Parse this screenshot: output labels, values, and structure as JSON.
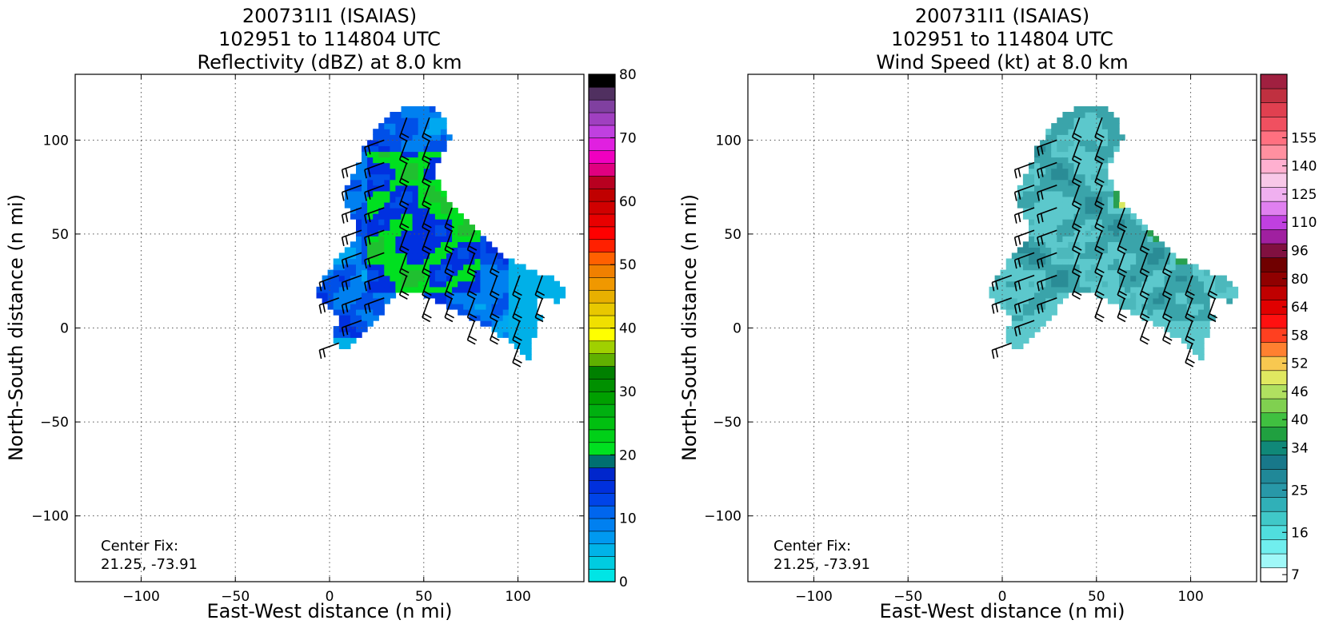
{
  "chart_data": [
    {
      "type": "heatmap",
      "title": [
        "200731I1 (ISAIAS)",
        "102951 to 114804 UTC",
        "Reflectivity (dBZ) at 8.0 km"
      ],
      "xlabel": "East-West distance (n mi)",
      "ylabel": "North-South distance (n mi)",
      "xlim": [
        -135,
        135
      ],
      "ylim": [
        -135,
        135
      ],
      "xticks": [
        -100,
        -50,
        0,
        50,
        100
      ],
      "yticks": [
        -100,
        -50,
        0,
        50,
        100
      ],
      "xtick_labels": [
        "−100",
        "−50",
        "0",
        "50",
        "100"
      ],
      "ytick_labels": [
        "−100",
        "−50",
        "0",
        "50",
        "100"
      ],
      "grid": true,
      "annotation": [
        "Center Fix:",
        "21.25, -73.91"
      ],
      "colorbar": {
        "min": 0,
        "max": 80,
        "tick_values": [
          0,
          10,
          20,
          30,
          40,
          50,
          60,
          70,
          80
        ],
        "tick_labels": [
          "0",
          "10",
          "20",
          "30",
          "40",
          "50",
          "60",
          "70",
          "80"
        ],
        "colors": [
          "#00e5e5",
          "#00cce0",
          "#00b3e8",
          "#0099f0",
          "#0080f0",
          "#0066ee",
          "#0044e8",
          "#0030dd",
          "#0026cc",
          "#007070",
          "#00e020",
          "#00d018",
          "#00c010",
          "#00b010",
          "#00a000",
          "#009000",
          "#008000",
          "#60b000",
          "#a0d000",
          "#ffff00",
          "#f0e000",
          "#e8c800",
          "#e8b000",
          "#f09800",
          "#f08000",
          "#ff6000",
          "#ff2000",
          "#ff0000",
          "#e80000",
          "#d00000",
          "#c00000",
          "#b80020",
          "#e00080",
          "#f000c0",
          "#e020e0",
          "#c040e0",
          "#a040c0",
          "#8040a0",
          "#503060",
          "#000000"
        ]
      },
      "field_palette": [
        "#00a8f0",
        "#0080f0",
        "#0050e8",
        "#0030e0",
        "#00e020",
        "#20c030",
        "#00b0e8"
      ]
    },
    {
      "type": "heatmap",
      "title": [
        "200731I1 (ISAIAS)",
        "102951 to 114804 UTC",
        "Wind Speed (kt) at 8.0 km"
      ],
      "xlabel": "East-West distance (n mi)",
      "ylabel": "North-South distance (n mi)",
      "xlim": [
        -135,
        135
      ],
      "ylim": [
        -135,
        135
      ],
      "xticks": [
        -100,
        -50,
        0,
        50,
        100
      ],
      "yticks": [
        -100,
        -50,
        0,
        50,
        100
      ],
      "xtick_labels": [
        "−100",
        "−50",
        "0",
        "50",
        "100"
      ],
      "ytick_labels": [
        "−100",
        "−50",
        "0",
        "50",
        "100"
      ],
      "grid": true,
      "annotation": [
        "Center Fix:",
        "21.25, -73.91"
      ],
      "colorbar": {
        "levels": [
          7,
          10,
          13,
          16,
          19,
          22,
          25,
          28,
          31,
          34,
          37,
          40,
          43,
          46,
          49,
          52,
          55,
          58,
          61,
          64,
          72,
          80,
          88,
          96,
          103,
          110,
          118,
          125,
          133,
          140,
          148,
          155,
          163
        ],
        "tick_values": [
          7,
          16,
          25,
          34,
          40,
          46,
          52,
          58,
          64,
          80,
          96,
          110,
          125,
          140,
          155
        ],
        "tick_labels": [
          "7",
          "16",
          "25",
          "34",
          "40",
          "46",
          "52",
          "58",
          "64",
          "80",
          "96",
          "110",
          "125",
          "140",
          "155"
        ],
        "colors": [
          "#ffffff",
          "#a0f8f8",
          "#70eeee",
          "#50dede",
          "#40c8c8",
          "#30b0b8",
          "#2898a8",
          "#208898",
          "#18788a",
          "#108878",
          "#20a040",
          "#40c040",
          "#80d050",
          "#b0e060",
          "#e0e860",
          "#f8c850",
          "#ff8030",
          "#ff4020",
          "#ff1010",
          "#e00000",
          "#c00000",
          "#900000",
          "#700000",
          "#801040",
          "#a020a0",
          "#c040e0",
          "#e080f0",
          "#f0b0f0",
          "#f8c8e8",
          "#ffb0d0",
          "#ff90a0",
          "#ff7080",
          "#f05060",
          "#e04050",
          "#c03040",
          "#a02040"
        ]
      },
      "field_palette": [
        "#2a8c96",
        "#3aa4aa",
        "#5cc8cc",
        "#4cb8bc",
        "#1e7e8a",
        "#28a050",
        "#60c850",
        "#d8e860"
      ]
    }
  ]
}
